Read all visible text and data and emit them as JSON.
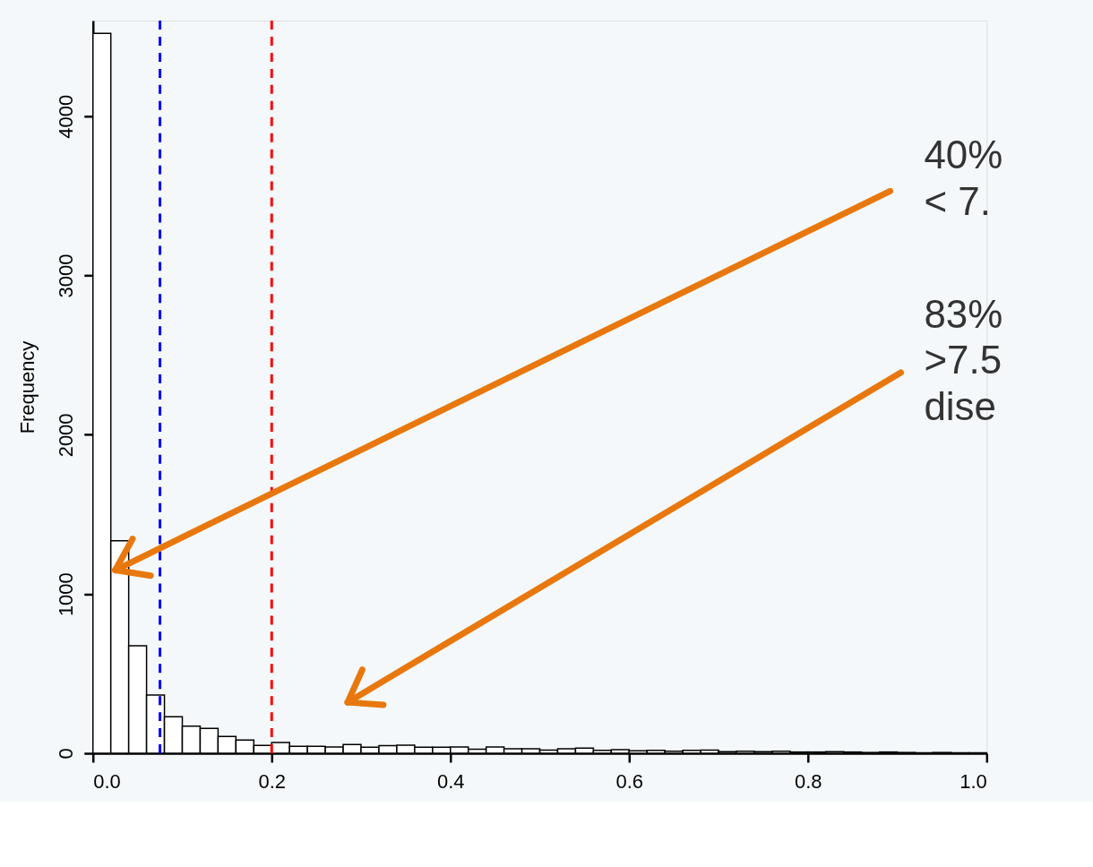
{
  "chart_data": {
    "type": "histogram",
    "ylabel": "Frequency",
    "bins": [
      0,
      0.02,
      0.04,
      0.06,
      0.08,
      0.1,
      0.12,
      0.14,
      0.16,
      0.18,
      0.2,
      0.22,
      0.24,
      0.26,
      0.28,
      0.3,
      0.32,
      0.34,
      0.36,
      0.38,
      0.4,
      0.42,
      0.44,
      0.46,
      0.48,
      0.5,
      0.52,
      0.54,
      0.56,
      0.58,
      0.6,
      0.62,
      0.64,
      0.66,
      0.68,
      0.7,
      0.72,
      0.74,
      0.76,
      0.78,
      0.8,
      0.82,
      0.84,
      0.86,
      0.88,
      0.9,
      0.92,
      0.94,
      0.96,
      0.98,
      1.0
    ],
    "values": [
      4520,
      1335,
      675,
      366,
      230,
      170,
      156,
      105,
      83,
      50,
      68,
      44,
      44,
      39,
      55,
      38,
      48,
      51,
      38,
      38,
      40,
      25,
      40,
      28,
      28,
      20,
      28,
      33,
      18,
      23,
      15,
      18,
      13,
      18,
      20,
      10,
      13,
      10,
      13,
      8,
      8,
      10,
      8,
      5,
      8,
      5,
      3,
      5,
      3,
      3
    ],
    "color": "#ffffff",
    "xlim": [
      0,
      1
    ],
    "ylim": [
      0,
      4600
    ],
    "xticks": [
      {
        "value": 0,
        "label": "0.0"
      },
      0.2,
      0.4,
      0.6,
      0.8,
      {
        "value": 1,
        "label": "1.0"
      }
    ],
    "yticks": [
      0,
      1000,
      2000,
      3000,
      4000
    ],
    "grid": false,
    "ref_lines": [
      {
        "axis": "x",
        "value": 0.075,
        "color": "#0000ff",
        "line_style": "dashed"
      },
      {
        "axis": "x",
        "value": 0.2,
        "color": "#ff0000",
        "line_style": "dashed"
      }
    ],
    "annotations": [
      {
        "text": "40%\n< 7.",
        "x": 0.025,
        "y": 1150
      },
      "83%\n>7.5\ndise"
    ]
  }
}
